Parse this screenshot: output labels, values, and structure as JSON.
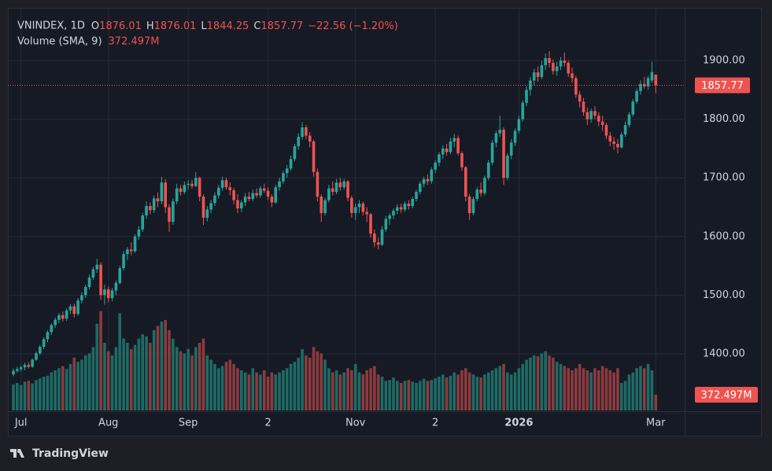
{
  "chart_data": {
    "type": "candlestick",
    "header": {
      "symbol": "VNINDEX, 1D",
      "open_label": "O",
      "open": 1876.01,
      "high_label": "H",
      "high": 1876.01,
      "low_label": "L",
      "low": 1844.25,
      "close_label": "C",
      "close": 1857.77,
      "change": "−22.56 (−1.20%)"
    },
    "volume_title": "Volume (SMA, 9)",
    "footer": "TradingView",
    "up_color": "#26a69a",
    "down_color": "#ef5350",
    "volume_up_color": "#1e6b65",
    "volume_down_color": "#8c3b3f",
    "grid": true,
    "ylim": [
      1303.5,
      1989.8
    ],
    "yticks": [
      {
        "value": 1400,
        "label": "1400.00"
      },
      {
        "value": 1500,
        "label": "1500.00"
      },
      {
        "value": 1600,
        "label": "1600.00"
      },
      {
        "value": 1700,
        "label": "1700.00"
      },
      {
        "value": 1800,
        "label": "1800.00"
      },
      {
        "value": 1900,
        "label": "1900.00"
      }
    ],
    "volume_ylim": [
      0,
      9520
    ],
    "categories": [
      null,
      null,
      "Jul",
      null,
      null,
      null,
      null,
      null,
      null,
      null,
      null,
      null,
      null,
      null,
      null,
      null,
      null,
      null,
      null,
      null,
      null,
      null,
      null,
      null,
      null,
      "Aug",
      null,
      null,
      null,
      null,
      null,
      null,
      null,
      null,
      null,
      null,
      null,
      null,
      null,
      null,
      null,
      null,
      null,
      null,
      null,
      null,
      "Sep",
      null,
      null,
      null,
      null,
      null,
      null,
      null,
      null,
      null,
      null,
      null,
      null,
      null,
      null,
      null,
      null,
      null,
      null,
      null,
      null,
      "2",
      null,
      null,
      null,
      null,
      null,
      null,
      null,
      null,
      null,
      null,
      null,
      null,
      null,
      null,
      null,
      null,
      null,
      null,
      null,
      null,
      null,
      null,
      "Nov",
      null,
      null,
      null,
      null,
      null,
      null,
      null,
      null,
      null,
      null,
      null,
      null,
      null,
      null,
      null,
      null,
      null,
      null,
      null,
      null,
      "2",
      null,
      null,
      null,
      null,
      null,
      null,
      null,
      null,
      null,
      null,
      null,
      null,
      null,
      null,
      null,
      null,
      null,
      null,
      null,
      null,
      null,
      "2026",
      null,
      null,
      null,
      null,
      null,
      null,
      null,
      null,
      null,
      null,
      null,
      null,
      null,
      null,
      null,
      null,
      null,
      null,
      null,
      null,
      null,
      null,
      null,
      null,
      null,
      null,
      null,
      null,
      null,
      null,
      null,
      null,
      null,
      null,
      null,
      "Mar"
    ],
    "candles": [
      [
        1365,
        1375,
        1362,
        1371
      ],
      [
        1371,
        1378,
        1368,
        1374
      ],
      [
        1374,
        1380,
        1370,
        1377
      ],
      [
        1377,
        1385,
        1372,
        1381
      ],
      [
        1381,
        1386,
        1375,
        1378
      ],
      [
        1378,
        1392,
        1376,
        1390
      ],
      [
        1390,
        1404,
        1388,
        1401
      ],
      [
        1401,
        1415,
        1398,
        1412
      ],
      [
        1412,
        1428,
        1408,
        1425
      ],
      [
        1425,
        1440,
        1420,
        1437
      ],
      [
        1437,
        1452,
        1432,
        1449
      ],
      [
        1449,
        1462,
        1444,
        1458
      ],
      [
        1458,
        1470,
        1452,
        1466
      ],
      [
        1466,
        1472,
        1455,
        1460
      ],
      [
        1460,
        1478,
        1456,
        1474
      ],
      [
        1474,
        1485,
        1468,
        1481
      ],
      [
        1481,
        1486,
        1462,
        1468
      ],
      [
        1468,
        1495,
        1465,
        1491
      ],
      [
        1491,
        1505,
        1486,
        1500
      ],
      [
        1500,
        1518,
        1495,
        1514
      ],
      [
        1514,
        1535,
        1510,
        1530
      ],
      [
        1530,
        1548,
        1526,
        1544
      ],
      [
        1544,
        1562,
        1538,
        1552
      ],
      [
        1552,
        1556,
        1492,
        1500
      ],
      [
        1500,
        1518,
        1484,
        1510
      ],
      [
        1510,
        1515,
        1488,
        1495
      ],
      [
        1495,
        1512,
        1490,
        1508
      ],
      [
        1508,
        1525,
        1500,
        1521
      ],
      [
        1521,
        1550,
        1518,
        1546
      ],
      [
        1546,
        1575,
        1542,
        1570
      ],
      [
        1570,
        1582,
        1560,
        1578
      ],
      [
        1578,
        1590,
        1568,
        1575
      ],
      [
        1575,
        1604,
        1572,
        1600
      ],
      [
        1600,
        1618,
        1595,
        1612
      ],
      [
        1612,
        1640,
        1608,
        1636
      ],
      [
        1636,
        1660,
        1630,
        1652
      ],
      [
        1652,
        1658,
        1638,
        1645
      ],
      [
        1645,
        1670,
        1640,
        1665
      ],
      [
        1665,
        1675,
        1650,
        1660
      ],
      [
        1660,
        1702,
        1655,
        1692
      ],
      [
        1692,
        1698,
        1640,
        1650
      ],
      [
        1650,
        1655,
        1608,
        1625
      ],
      [
        1625,
        1665,
        1620,
        1660
      ],
      [
        1660,
        1690,
        1655,
        1682
      ],
      [
        1682,
        1688,
        1670,
        1676
      ],
      [
        1676,
        1694,
        1672,
        1688
      ],
      [
        1688,
        1696,
        1680,
        1690
      ],
      [
        1690,
        1697,
        1682,
        1686
      ],
      [
        1686,
        1710,
        1684,
        1700
      ],
      [
        1700,
        1702,
        1660,
        1668
      ],
      [
        1668,
        1672,
        1620,
        1632
      ],
      [
        1632,
        1652,
        1626,
        1646
      ],
      [
        1646,
        1662,
        1640,
        1657
      ],
      [
        1657,
        1675,
        1652,
        1670
      ],
      [
        1670,
        1688,
        1665,
        1683
      ],
      [
        1683,
        1702,
        1678,
        1696
      ],
      [
        1696,
        1700,
        1680,
        1684
      ],
      [
        1684,
        1692,
        1670,
        1679
      ],
      [
        1679,
        1683,
        1655,
        1662
      ],
      [
        1662,
        1672,
        1640,
        1648
      ],
      [
        1648,
        1662,
        1642,
        1658
      ],
      [
        1658,
        1674,
        1652,
        1668
      ],
      [
        1668,
        1676,
        1660,
        1664
      ],
      [
        1664,
        1680,
        1660,
        1674
      ],
      [
        1674,
        1682,
        1666,
        1670
      ],
      [
        1670,
        1686,
        1666,
        1682
      ],
      [
        1682,
        1690,
        1674,
        1678
      ],
      [
        1678,
        1684,
        1662,
        1668
      ],
      [
        1668,
        1672,
        1650,
        1658
      ],
      [
        1658,
        1688,
        1656,
        1684
      ],
      [
        1684,
        1700,
        1678,
        1694
      ],
      [
        1694,
        1712,
        1690,
        1708
      ],
      [
        1708,
        1722,
        1700,
        1716
      ],
      [
        1716,
        1738,
        1712,
        1732
      ],
      [
        1732,
        1758,
        1728,
        1754
      ],
      [
        1754,
        1776,
        1748,
        1770
      ],
      [
        1770,
        1795,
        1765,
        1786
      ],
      [
        1786,
        1790,
        1766,
        1772
      ],
      [
        1772,
        1778,
        1752,
        1762
      ],
      [
        1762,
        1765,
        1702,
        1710
      ],
      [
        1710,
        1716,
        1660,
        1668
      ],
      [
        1668,
        1672,
        1625,
        1640
      ],
      [
        1640,
        1666,
        1636,
        1662
      ],
      [
        1662,
        1688,
        1658,
        1682
      ],
      [
        1682,
        1694,
        1670,
        1676
      ],
      [
        1676,
        1698,
        1672,
        1692
      ],
      [
        1692,
        1700,
        1678,
        1684
      ],
      [
        1684,
        1698,
        1680,
        1694
      ],
      [
        1694,
        1696,
        1660,
        1666
      ],
      [
        1666,
        1670,
        1632,
        1640
      ],
      [
        1640,
        1656,
        1628,
        1650
      ],
      [
        1650,
        1662,
        1640,
        1656
      ],
      [
        1656,
        1660,
        1636,
        1642
      ],
      [
        1642,
        1650,
        1625,
        1638
      ],
      [
        1638,
        1640,
        1598,
        1605
      ],
      [
        1605,
        1612,
        1582,
        1590
      ],
      [
        1590,
        1598,
        1578,
        1586
      ],
      [
        1586,
        1618,
        1584,
        1612
      ],
      [
        1612,
        1635,
        1608,
        1630
      ],
      [
        1630,
        1640,
        1620,
        1636
      ],
      [
        1636,
        1648,
        1630,
        1644
      ],
      [
        1644,
        1655,
        1638,
        1650
      ],
      [
        1650,
        1656,
        1640,
        1646
      ],
      [
        1646,
        1660,
        1642,
        1656
      ],
      [
        1656,
        1662,
        1646,
        1652
      ],
      [
        1652,
        1668,
        1648,
        1664
      ],
      [
        1664,
        1680,
        1660,
        1676
      ],
      [
        1676,
        1694,
        1672,
        1690
      ],
      [
        1690,
        1702,
        1684,
        1698
      ],
      [
        1698,
        1706,
        1688,
        1694
      ],
      [
        1694,
        1718,
        1690,
        1714
      ],
      [
        1714,
        1730,
        1708,
        1726
      ],
      [
        1726,
        1744,
        1720,
        1740
      ],
      [
        1740,
        1756,
        1732,
        1750
      ],
      [
        1750,
        1758,
        1738,
        1744
      ],
      [
        1744,
        1768,
        1740,
        1762
      ],
      [
        1762,
        1775,
        1752,
        1768
      ],
      [
        1768,
        1772,
        1738,
        1742
      ],
      [
        1742,
        1745,
        1712,
        1718
      ],
      [
        1718,
        1720,
        1660,
        1668
      ],
      [
        1668,
        1672,
        1628,
        1640
      ],
      [
        1640,
        1668,
        1636,
        1664
      ],
      [
        1664,
        1684,
        1660,
        1680
      ],
      [
        1680,
        1692,
        1668,
        1674
      ],
      [
        1674,
        1704,
        1670,
        1700
      ],
      [
        1700,
        1730,
        1696,
        1726
      ],
      [
        1726,
        1764,
        1722,
        1760
      ],
      [
        1760,
        1780,
        1752,
        1776
      ],
      [
        1776,
        1806,
        1770,
        1782
      ],
      [
        1782,
        1786,
        1688,
        1700
      ],
      [
        1700,
        1742,
        1696,
        1738
      ],
      [
        1738,
        1766,
        1732,
        1760
      ],
      [
        1760,
        1784,
        1754,
        1780
      ],
      [
        1780,
        1806,
        1776,
        1800
      ],
      [
        1800,
        1832,
        1796,
        1828
      ],
      [
        1828,
        1856,
        1822,
        1850
      ],
      [
        1850,
        1872,
        1840,
        1866
      ],
      [
        1866,
        1886,
        1858,
        1880
      ],
      [
        1880,
        1890,
        1864,
        1872
      ],
      [
        1872,
        1900,
        1868,
        1892
      ],
      [
        1892,
        1912,
        1884,
        1904
      ],
      [
        1904,
        1916,
        1888,
        1896
      ],
      [
        1896,
        1902,
        1876,
        1882
      ],
      [
        1882,
        1898,
        1874,
        1890
      ],
      [
        1890,
        1906,
        1884,
        1900
      ],
      [
        1900,
        1914,
        1890,
        1896
      ],
      [
        1896,
        1900,
        1872,
        1878
      ],
      [
        1878,
        1888,
        1862,
        1870
      ],
      [
        1870,
        1874,
        1836,
        1842
      ],
      [
        1842,
        1848,
        1820,
        1830
      ],
      [
        1830,
        1836,
        1806,
        1812
      ],
      [
        1812,
        1820,
        1790,
        1800
      ],
      [
        1800,
        1818,
        1794,
        1814
      ],
      [
        1814,
        1822,
        1800,
        1806
      ],
      [
        1806,
        1812,
        1788,
        1796
      ],
      [
        1796,
        1806,
        1780,
        1790
      ],
      [
        1790,
        1794,
        1766,
        1772
      ],
      [
        1772,
        1778,
        1754,
        1762
      ],
      [
        1762,
        1770,
        1748,
        1758
      ],
      [
        1758,
        1766,
        1742,
        1752
      ],
      [
        1752,
        1778,
        1750,
        1774
      ],
      [
        1774,
        1796,
        1770,
        1790
      ],
      [
        1790,
        1812,
        1786,
        1808
      ],
      [
        1808,
        1834,
        1804,
        1830
      ],
      [
        1830,
        1852,
        1826,
        1848
      ],
      [
        1848,
        1866,
        1842,
        1860
      ],
      [
        1860,
        1872,
        1852,
        1856
      ],
      [
        1856,
        1874,
        1850,
        1870
      ],
      [
        1866,
        1898,
        1862,
        1880.33
      ],
      [
        1876.01,
        1876.01,
        1844.25,
        1857.77
      ]
    ],
    "last_price_label": "1857.77",
    "volume": [
      620,
      650,
      600,
      680,
      700,
      640,
      720,
      760,
      800,
      820,
      900,
      950,
      1000,
      1050,
      980,
      1100,
      1250,
      1150,
      1200,
      1300,
      1350,
      1500,
      2050,
      2350,
      1600,
      1400,
      1300,
      1500,
      2300,
      1700,
      1600,
      1450,
      1550,
      1700,
      1800,
      1750,
      1600,
      1900,
      2000,
      2100,
      2140,
      1900,
      1700,
      1500,
      1400,
      1350,
      1450,
      1300,
      1500,
      1600,
      1700,
      1300,
      1200,
      1100,
      1000,
      1050,
      1150,
      1200,
      1100,
      1000,
      950,
      900,
      850,
      1000,
      900,
      850,
      950,
      800,
      900,
      850,
      900,
      950,
      1000,
      1100,
      1150,
      1250,
      1450,
      1300,
      1250,
      1500,
      1400,
      1350,
      1200,
      1000,
      900,
      950,
      850,
      900,
      1000,
      950,
      1100,
      900,
      850,
      950,
      1000,
      1050,
      850,
      800,
      700,
      720,
      780,
      700,
      650,
      700,
      720,
      680,
      650,
      700,
      750,
      700,
      720,
      760,
      800,
      850,
      780,
      820,
      900,
      850,
      950,
      1000,
      900,
      850,
      800,
      780,
      850,
      900,
      950,
      1000,
      1050,
      1100,
      900,
      850,
      900,
      1000,
      1100,
      1200,
      1250,
      1300,
      1280,
      1350,
      1400,
      1300,
      1250,
      1150,
      1100,
      1050,
      1000,
      950,
      1000,
      1100,
      1000,
      950,
      900,
      1000,
      950,
      1050,
      1000,
      950,
      900,
      1000,
      650,
      700,
      850,
      900,
      1000,
      1050,
      1000,
      1100,
      950,
      372.497
    ],
    "volume_value_label": "372.497M"
  }
}
